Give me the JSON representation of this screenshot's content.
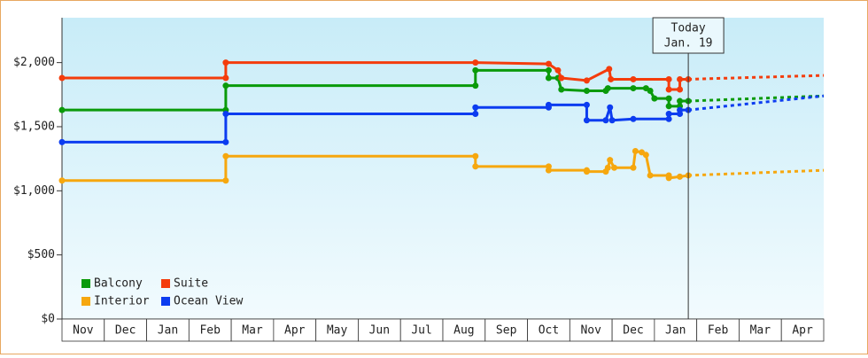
{
  "chart_data": {
    "type": "line",
    "step": true,
    "ylim": [
      0,
      2350
    ],
    "yticks": [
      {
        "value": 0,
        "label": "$0"
      },
      {
        "value": 500,
        "label": "$500"
      },
      {
        "value": 1000,
        "label": "$1,000"
      },
      {
        "value": 1500,
        "label": "$1,500"
      },
      {
        "value": 2000,
        "label": "$2,000"
      }
    ],
    "xlim": [
      0,
      18
    ],
    "month_labels": [
      "Nov",
      "Dec",
      "Jan",
      "Feb",
      "Mar",
      "Apr",
      "May",
      "Jun",
      "Jul",
      "Aug",
      "Sep",
      "Oct",
      "Nov",
      "Dec",
      "Jan",
      "Feb",
      "Mar",
      "Apr"
    ],
    "today_x": 14.8,
    "today_label": [
      "Today",
      "Jan. 19"
    ],
    "forecast_x": [
      14.8,
      18
    ],
    "legend": "lower left",
    "series": [
      {
        "name": "Balcony",
        "color": "#0a9a0a",
        "x": [
          0,
          3.87,
          3.87,
          9.77,
          9.77,
          11.5,
          11.5,
          11.72,
          11.8,
          12.4,
          12.85,
          12.9,
          13.5,
          13.8,
          13.9,
          14.0,
          14.34,
          14.34,
          14.6,
          14.6,
          14.8
        ],
        "values": [
          1630,
          1630,
          1820,
          1820,
          1940,
          1940,
          1880,
          1880,
          1790,
          1780,
          1780,
          1800,
          1800,
          1800,
          1780,
          1720,
          1720,
          1660,
          1660,
          1700,
          1700
        ],
        "forecast_values": [
          1700,
          1740
        ]
      },
      {
        "name": "Suite",
        "color": "#f43c0c",
        "x": [
          0,
          3.87,
          3.87,
          9.77,
          11.5,
          11.72,
          11.8,
          12.4,
          12.93,
          12.97,
          13.5,
          14.34,
          14.34,
          14.6,
          14.6,
          14.8
        ],
        "values": [
          1880,
          1880,
          2000,
          2000,
          1990,
          1940,
          1880,
          1860,
          1950,
          1870,
          1870,
          1870,
          1790,
          1790,
          1870,
          1870
        ],
        "forecast_values": [
          1870,
          1900
        ]
      },
      {
        "name": "Interior",
        "color": "#f6a70e",
        "x": [
          0,
          3.87,
          3.87,
          9.77,
          9.77,
          11.5,
          11.5,
          12.4,
          12.4,
          12.85,
          12.9,
          12.95,
          13.05,
          13.5,
          13.55,
          13.7,
          13.8,
          13.9,
          14.34,
          14.34,
          14.6,
          14.8
        ],
        "values": [
          1080,
          1080,
          1270,
          1270,
          1190,
          1190,
          1160,
          1160,
          1150,
          1150,
          1180,
          1240,
          1180,
          1180,
          1310,
          1300,
          1280,
          1120,
          1120,
          1100,
          1110,
          1120
        ],
        "forecast_values": [
          1120,
          1160
        ]
      },
      {
        "name": "Ocean View",
        "color": "#0c3cf0",
        "x": [
          0,
          3.87,
          3.87,
          9.77,
          9.77,
          11.5,
          11.5,
          12.4,
          12.4,
          12.85,
          12.95,
          13.0,
          13.5,
          14.34,
          14.34,
          14.6,
          14.6,
          14.8
        ],
        "values": [
          1380,
          1380,
          1600,
          1600,
          1650,
          1650,
          1670,
          1670,
          1550,
          1550,
          1650,
          1550,
          1560,
          1560,
          1600,
          1600,
          1630,
          1630
        ],
        "forecast_values": [
          1630,
          1740
        ]
      }
    ]
  }
}
